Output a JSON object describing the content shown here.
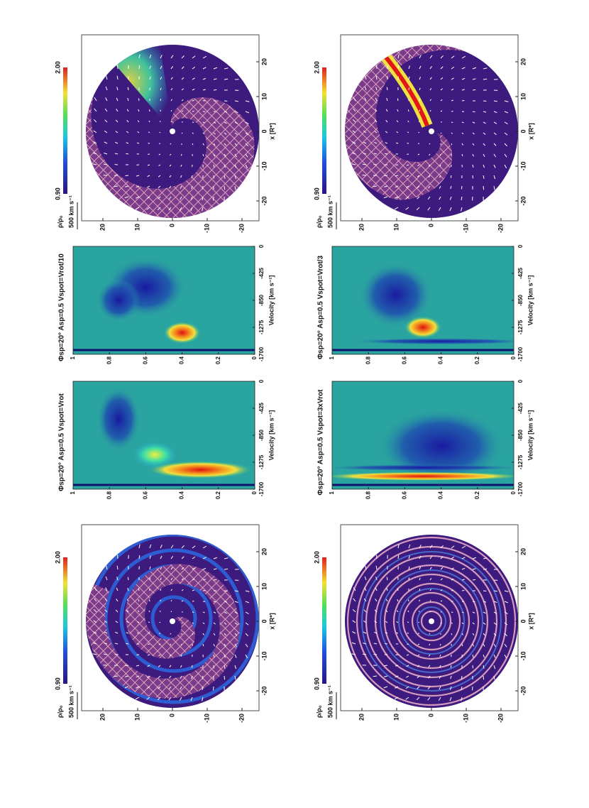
{
  "disk_panels": [
    {
      "density_label": "ρ/ρ₀",
      "scale_min": "0.90",
      "scale_max": "2.00",
      "arrow_label": "500 km s⁻¹",
      "y_ticks": [
        "20",
        "10",
        "0",
        "-10",
        "-20"
      ],
      "x_ticks": [
        "-20",
        "-10",
        "0",
        "10",
        "20"
      ],
      "x_label": "x [R*]"
    },
    {
      "density_label": "ρ/ρ₀",
      "scale_min": "0.90",
      "scale_max": "2.00",
      "arrow_label": "500 km s⁻¹",
      "y_ticks": [
        "20",
        "10",
        "0",
        "-10",
        "-20"
      ],
      "x_ticks": [
        "-20",
        "-10",
        "0",
        "10",
        "20"
      ],
      "x_label": "x [R*]"
    },
    {
      "density_label": "ρ/ρ₀",
      "scale_min": "0.90",
      "scale_max": "2.00",
      "arrow_label": "500 km s⁻¹",
      "y_ticks": [
        "20",
        "10",
        "0",
        "-10",
        "-20"
      ],
      "x_ticks": [
        "-20",
        "-10",
        "0",
        "10",
        "20"
      ],
      "x_label": "x [R*]"
    },
    {
      "density_label": "ρ/ρ₀",
      "scale_min": "0.90",
      "scale_max": "2.00",
      "arrow_label": "500 km s⁻¹",
      "y_ticks": [
        "20",
        "10",
        "0",
        "-10",
        "-20"
      ],
      "x_ticks": [
        "-20",
        "-10",
        "0",
        "10",
        "20"
      ],
      "x_label": "x [R*]"
    }
  ],
  "spectrum_panels": [
    {
      "title": "Φsp=20° Asp=0.5 Vspot=Vrot/10",
      "y_ticks": [
        "0",
        "0.2",
        "0.4",
        "0.6",
        "0.8",
        "1"
      ],
      "x_ticks": [
        "-1700",
        "-1275",
        "-850",
        "-425",
        "0"
      ],
      "x_label": "Velocity [km s⁻¹]"
    },
    {
      "title": "Φsp=20° Asp=0.5 Vspot=Vrot",
      "y_ticks": [
        "0",
        "0.2",
        "0.4",
        "0.6",
        "0.8",
        "1"
      ],
      "x_ticks": [
        "-1700",
        "-1275",
        "-850",
        "-425",
        "0"
      ],
      "x_label": "Velocity [km s⁻¹]"
    },
    {
      "title": "Φsp=20° Asp=0.5 Vspot=Vrot/3",
      "y_ticks": [
        "0",
        "0.2",
        "0.4",
        "0.6",
        "0.8",
        "1"
      ],
      "x_ticks": [
        "-1700",
        "-1275",
        "-850",
        "-425",
        "0"
      ],
      "x_label": "Velocity [km s⁻¹]"
    },
    {
      "title": "Φsp=20° Asp=0.5 Vspot=3xVrot",
      "y_ticks": [
        "0",
        "0.2",
        "0.4",
        "0.6",
        "0.8",
        "1"
      ],
      "x_ticks": [
        "-1700",
        "-1275",
        "-850",
        "-425",
        "0"
      ],
      "x_label": "Velocity [km s⁻¹]"
    }
  ]
}
